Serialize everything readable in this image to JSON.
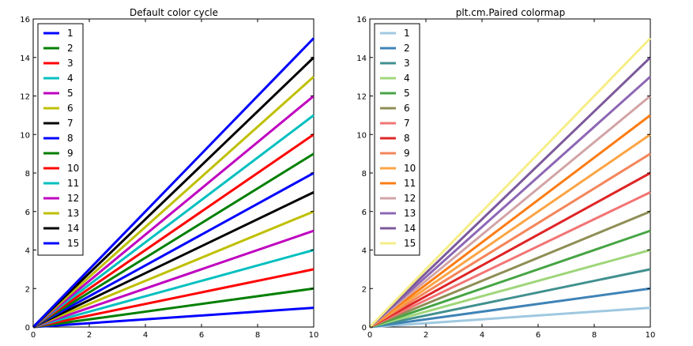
{
  "chart_data": [
    {
      "type": "line",
      "title": "Default color cycle",
      "xlim": [
        0,
        10
      ],
      "ylim": [
        0,
        16
      ],
      "xticks": [
        "0",
        "2",
        "4",
        "6",
        "8",
        "10"
      ],
      "yticks": [
        "0",
        "2",
        "4",
        "6",
        "8",
        "10",
        "12",
        "14",
        "16"
      ],
      "legend_position": "top-left",
      "grid": false,
      "series": [
        {
          "name": "1",
          "color": "#0000ff",
          "x": [
            0,
            10
          ],
          "y": [
            0,
            1
          ]
        },
        {
          "name": "2",
          "color": "#007f00",
          "x": [
            0,
            10
          ],
          "y": [
            0,
            2
          ]
        },
        {
          "name": "3",
          "color": "#ff0000",
          "x": [
            0,
            10
          ],
          "y": [
            0,
            3
          ]
        },
        {
          "name": "4",
          "color": "#00bfbf",
          "x": [
            0,
            10
          ],
          "y": [
            0,
            4
          ]
        },
        {
          "name": "5",
          "color": "#bf00bf",
          "x": [
            0,
            10
          ],
          "y": [
            0,
            5
          ]
        },
        {
          "name": "6",
          "color": "#bfbf00",
          "x": [
            0,
            10
          ],
          "y": [
            0,
            6
          ]
        },
        {
          "name": "7",
          "color": "#000000",
          "x": [
            0,
            10
          ],
          "y": [
            0,
            7
          ]
        },
        {
          "name": "8",
          "color": "#0000ff",
          "x": [
            0,
            10
          ],
          "y": [
            0,
            8
          ]
        },
        {
          "name": "9",
          "color": "#007f00",
          "x": [
            0,
            10
          ],
          "y": [
            0,
            9
          ]
        },
        {
          "name": "10",
          "color": "#ff0000",
          "x": [
            0,
            10
          ],
          "y": [
            0,
            10
          ]
        },
        {
          "name": "11",
          "color": "#00bfbf",
          "x": [
            0,
            10
          ],
          "y": [
            0,
            11
          ]
        },
        {
          "name": "12",
          "color": "#bf00bf",
          "x": [
            0,
            10
          ],
          "y": [
            0,
            12
          ]
        },
        {
          "name": "13",
          "color": "#bfbf00",
          "x": [
            0,
            10
          ],
          "y": [
            0,
            13
          ]
        },
        {
          "name": "14",
          "color": "#000000",
          "x": [
            0,
            10
          ],
          "y": [
            0,
            14
          ]
        },
        {
          "name": "15",
          "color": "#0000ff",
          "x": [
            0,
            10
          ],
          "y": [
            0,
            15
          ]
        }
      ]
    },
    {
      "type": "line",
      "title": "plt.cm.Paired colormap",
      "xlim": [
        0,
        10
      ],
      "ylim": [
        0,
        16
      ],
      "xticks": [
        "0",
        "2",
        "4",
        "6",
        "8",
        "10"
      ],
      "yticks": [
        "0",
        "2",
        "4",
        "6",
        "8",
        "10",
        "12",
        "14",
        "16"
      ],
      "legend_position": "top-left",
      "grid": false,
      "series": [
        {
          "name": "1",
          "color": "#9fc8e0",
          "x": [
            0,
            10
          ],
          "y": [
            0,
            1
          ]
        },
        {
          "name": "2",
          "color": "#3f83b6",
          "x": [
            0,
            10
          ],
          "y": [
            0,
            2
          ]
        },
        {
          "name": "3",
          "color": "#41908f",
          "x": [
            0,
            10
          ],
          "y": [
            0,
            3
          ]
        },
        {
          "name": "4",
          "color": "#9fd67a",
          "x": [
            0,
            10
          ],
          "y": [
            0,
            4
          ]
        },
        {
          "name": "5",
          "color": "#47a444",
          "x": [
            0,
            10
          ],
          "y": [
            0,
            5
          ]
        },
        {
          "name": "6",
          "color": "#8e8e56",
          "x": [
            0,
            10
          ],
          "y": [
            0,
            6
          ]
        },
        {
          "name": "7",
          "color": "#f27474",
          "x": [
            0,
            10
          ],
          "y": [
            0,
            7
          ]
        },
        {
          "name": "8",
          "color": "#df2526",
          "x": [
            0,
            10
          ],
          "y": [
            0,
            8
          ]
        },
        {
          "name": "9",
          "color": "#f4855a",
          "x": [
            0,
            10
          ],
          "y": [
            0,
            9
          ]
        },
        {
          "name": "10",
          "color": "#fca444",
          "x": [
            0,
            10
          ],
          "y": [
            0,
            10
          ]
        },
        {
          "name": "11",
          "color": "#fc7c14",
          "x": [
            0,
            10
          ],
          "y": [
            0,
            11
          ]
        },
        {
          "name": "12",
          "color": "#d2a4a6",
          "x": [
            0,
            10
          ],
          "y": [
            0,
            12
          ]
        },
        {
          "name": "13",
          "color": "#8d67b4",
          "x": [
            0,
            10
          ],
          "y": [
            0,
            13
          ]
        },
        {
          "name": "14",
          "color": "#7c599b",
          "x": [
            0,
            10
          ],
          "y": [
            0,
            14
          ]
        },
        {
          "name": "15",
          "color": "#f6ee86",
          "x": [
            0,
            10
          ],
          "y": [
            0,
            15
          ]
        }
      ]
    }
  ]
}
